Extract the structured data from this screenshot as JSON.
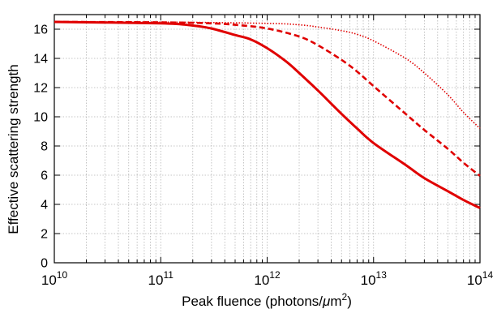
{
  "chart_data": {
    "type": "line",
    "xscale": "log",
    "xlim": [
      10000000000.0,
      100000000000000.0
    ],
    "ylim": [
      0,
      17
    ],
    "grid": true,
    "xlabel": {
      "main": "Peak fluence (photons/",
      "mu": "μ",
      "unit": "m",
      "exp": "2",
      "close": ")"
    },
    "ylabel": "Effective scattering strength",
    "xticks": [
      {
        "value": 10000000000.0,
        "base": "10",
        "exp": "10"
      },
      {
        "value": 100000000000.0,
        "base": "10",
        "exp": "11"
      },
      {
        "value": 1000000000000.0,
        "base": "10",
        "exp": "12"
      },
      {
        "value": 10000000000000.0,
        "base": "10",
        "exp": "13"
      },
      {
        "value": 100000000000000.0,
        "base": "10",
        "exp": "14"
      }
    ],
    "yticks": [
      {
        "value": 0,
        "label": "0"
      },
      {
        "value": 2,
        "label": "2"
      },
      {
        "value": 4,
        "label": "4"
      },
      {
        "value": 6,
        "label": "6"
      },
      {
        "value": 8,
        "label": "8"
      },
      {
        "value": 10,
        "label": "10"
      },
      {
        "value": 12,
        "label": "12"
      },
      {
        "value": 14,
        "label": "14"
      },
      {
        "value": 16,
        "label": "16"
      }
    ],
    "series": [
      {
        "style": "solid",
        "color": "#e00000",
        "x": [
          10000000000.0,
          100000000000.0,
          200000000000.0,
          300000000000.0,
          500000000000.0,
          700000000000.0,
          1000000000000.0,
          1500000000000.0,
          2000000000000.0,
          3000000000000.0,
          4000000000000.0,
          5000000000000.0,
          7000000000000.0,
          10000000000000.0,
          20000000000000.0,
          30000000000000.0,
          50000000000000.0,
          70000000000000.0,
          100000000000000.0
        ],
        "y": [
          16.5,
          16.4,
          16.25,
          16.05,
          15.6,
          15.3,
          14.7,
          13.8,
          13.0,
          11.8,
          10.9,
          10.2,
          9.2,
          8.2,
          6.7,
          5.8,
          4.9,
          4.3,
          3.75
        ]
      },
      {
        "style": "dashed",
        "color": "#e00000",
        "x": [
          10000000000.0,
          100000000000.0,
          300000000000.0,
          500000000000.0,
          1000000000000.0,
          2000000000000.0,
          3000000000000.0,
          5000000000000.0,
          7000000000000.0,
          10000000000000.0,
          20000000000000.0,
          30000000000000.0,
          50000000000000.0,
          70000000000000.0,
          100000000000000.0
        ],
        "y": [
          16.5,
          16.47,
          16.4,
          16.3,
          16.05,
          15.5,
          14.9,
          13.9,
          13.1,
          12.1,
          10.2,
          9.1,
          7.8,
          6.85,
          5.95
        ]
      },
      {
        "style": "dotted",
        "color": "#e00000",
        "x": [
          10000000000.0,
          100000000000.0,
          1000000000000.0,
          2000000000000.0,
          3000000000000.0,
          5000000000000.0,
          7000000000000.0,
          10000000000000.0,
          20000000000000.0,
          30000000000000.0,
          50000000000000.0,
          70000000000000.0,
          100000000000000.0
        ],
        "y": [
          16.5,
          16.49,
          16.4,
          16.3,
          16.15,
          15.9,
          15.65,
          15.2,
          14.0,
          13.0,
          11.5,
          10.3,
          9.2
        ]
      }
    ]
  }
}
